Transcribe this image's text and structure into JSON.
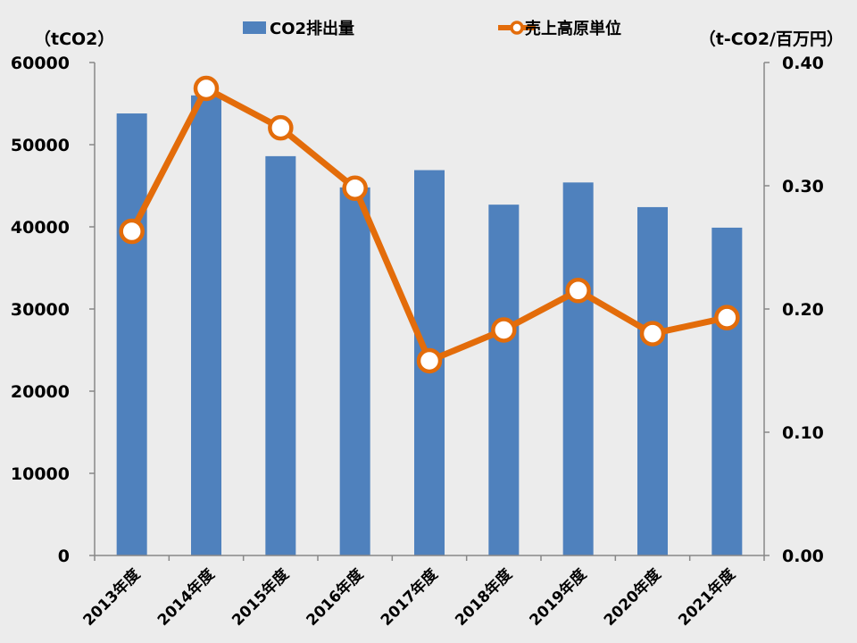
{
  "chart_data": {
    "type": "bar+line",
    "categories": [
      "2013年度",
      "2014年度",
      "2015年度",
      "2016年度",
      "2017年度",
      "2018年度",
      "2019年度",
      "2020年度",
      "2021年度"
    ],
    "series": [
      {
        "name": "CO2排出量",
        "type": "bar",
        "axis": "left",
        "values": [
          53800,
          56000,
          48600,
          44800,
          46900,
          42700,
          45400,
          42400,
          39900
        ]
      },
      {
        "name": "売上高原単位",
        "type": "line",
        "axis": "right",
        "values": [
          0.263,
          0.379,
          0.347,
          0.298,
          0.158,
          0.183,
          0.215,
          0.18,
          0.193
        ]
      }
    ],
    "y_left": {
      "unit": "（tCO2）",
      "ylim": [
        0,
        60000
      ],
      "ticks": [
        "0",
        "10000",
        "20000",
        "30000",
        "40000",
        "50000",
        "60000"
      ]
    },
    "y_right": {
      "unit": "（t-CO2/百万円）",
      "ylim": [
        0,
        0.4
      ],
      "ticks": [
        "0.00",
        "0.10",
        "0.20",
        "0.30",
        "0.40"
      ]
    },
    "grid": false,
    "legend_position": "top",
    "colors": {
      "bar": "#4f81bd",
      "line": "#e36c0a",
      "marker_fill": "#ffffff",
      "background": "#ececec"
    }
  }
}
